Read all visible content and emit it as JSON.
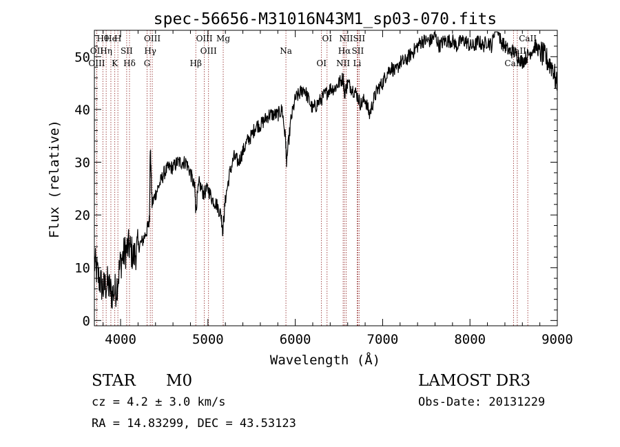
{
  "chart_data": {
    "type": "line",
    "title": "spec-56656-M31016N43M1_sp03-070.fits",
    "xlabel": "Wavelength (Å)",
    "ylabel": "Flux (relative)",
    "xlim": [
      3700,
      9000
    ],
    "ylim": [
      -1,
      55
    ],
    "xticks": [
      4000,
      5000,
      6000,
      7000,
      8000,
      9000
    ],
    "yticks": [
      0,
      10,
      20,
      30,
      40,
      50
    ],
    "grid": false,
    "series": [
      {
        "name": "flux",
        "x": [
          3700,
          3750,
          3800,
          3850,
          3900,
          3950,
          4000,
          4050,
          4100,
          4150,
          4200,
          4250,
          4300,
          4330,
          4340,
          4360,
          4400,
          4450,
          4500,
          4550,
          4600,
          4650,
          4700,
          4750,
          4800,
          4850,
          4860,
          4900,
          4950,
          5000,
          5050,
          5100,
          5150,
          5170,
          5200,
          5250,
          5300,
          5350,
          5400,
          5450,
          5500,
          5550,
          5600,
          5650,
          5700,
          5750,
          5800,
          5850,
          5890,
          5900,
          5950,
          6000,
          6050,
          6100,
          6150,
          6200,
          6250,
          6300,
          6350,
          6400,
          6450,
          6500,
          6550,
          6563,
          6600,
          6650,
          6700,
          6750,
          6800,
          6850,
          6900,
          6950,
          7000,
          7050,
          7100,
          7150,
          7200,
          7250,
          7300,
          7350,
          7400,
          7450,
          7500,
          7550,
          7600,
          7650,
          7700,
          7750,
          7800,
          7850,
          7900,
          7950,
          8000,
          8050,
          8100,
          8150,
          8200,
          8250,
          8300,
          8350,
          8400,
          8450,
          8500,
          8550,
          8600,
          8650,
          8700,
          8750,
          8800,
          8850,
          8900,
          8950,
          9000
        ],
        "y": [
          11,
          8,
          6,
          7,
          5,
          6,
          11,
          13,
          14,
          12,
          14,
          15,
          17,
          19,
          33,
          22,
          24,
          26,
          28,
          29,
          29,
          30,
          30,
          30,
          28,
          25,
          21,
          26,
          24,
          25,
          23,
          22,
          20,
          17,
          23,
          28,
          31,
          30,
          32,
          34,
          35,
          37,
          37,
          38,
          39,
          39,
          39,
          40,
          34,
          30,
          38,
          42,
          43,
          44,
          42,
          40,
          41,
          42,
          43,
          44,
          44,
          45,
          46,
          43,
          45,
          44,
          43,
          41,
          42,
          39,
          42,
          44,
          45,
          47,
          48,
          47,
          49,
          49,
          50,
          51,
          52,
          53,
          53,
          53,
          54,
          52,
          53,
          53,
          53,
          52,
          53,
          53,
          52,
          52,
          53,
          52,
          53,
          52,
          57,
          53,
          52,
          51,
          51,
          50,
          49,
          50,
          51,
          52,
          51,
          50,
          49,
          48,
          44
        ]
      }
    ],
    "lines": [
      {
        "label": "Hθ",
        "wave": 3797
      },
      {
        "label": "OII",
        "wave": 3727
      },
      {
        "label": "OIII",
        "wave": 3727
      },
      {
        "label": "He",
        "wave": 3889
      },
      {
        "label": "Hη",
        "wave": 3835
      },
      {
        "label": "K",
        "wave": 3934
      },
      {
        "label": "H",
        "wave": 3969
      },
      {
        "label": "SII",
        "wave": 4070
      },
      {
        "label": "Hδ",
        "wave": 4102
      },
      {
        "label": "OIII",
        "wave": 4363
      },
      {
        "label": "Hγ",
        "wave": 4340
      },
      {
        "label": "G",
        "wave": 4304
      },
      {
        "label": "OIII",
        "wave": 4959
      },
      {
        "label": "OIII",
        "wave": 5007
      },
      {
        "label": "Hβ",
        "wave": 4861
      },
      {
        "label": "Mg",
        "wave": 5175
      },
      {
        "label": "Na",
        "wave": 5893
      },
      {
        "label": "OI",
        "wave": 6300
      },
      {
        "label": "OI",
        "wave": 6364
      },
      {
        "label": "Hα",
        "wave": 6563
      },
      {
        "label": "NII",
        "wave": 6548
      },
      {
        "label": "NII",
        "wave": 6583
      },
      {
        "label": "SII",
        "wave": 6716
      },
      {
        "label": "Li",
        "wave": 6708
      },
      {
        "label": "SII",
        "wave": 6731
      },
      {
        "label": "CaII",
        "wave": 8542
      },
      {
        "label": "CaII",
        "wave": 8498
      },
      {
        "label": "CaII",
        "wave": 8662
      }
    ]
  },
  "info": {
    "class_label": "STAR",
    "subclass": "M0",
    "cz": "cz = 4.2 ± 3.0 km/s",
    "coords": "RA =  14.83299, DEC =  43.53123",
    "survey": "LAMOST DR3",
    "obs_date": "Obs-Date: 20131229"
  },
  "colors": {
    "spectrum": "#000000",
    "line_marker": "#8b1a1a",
    "axes": "#000000"
  }
}
